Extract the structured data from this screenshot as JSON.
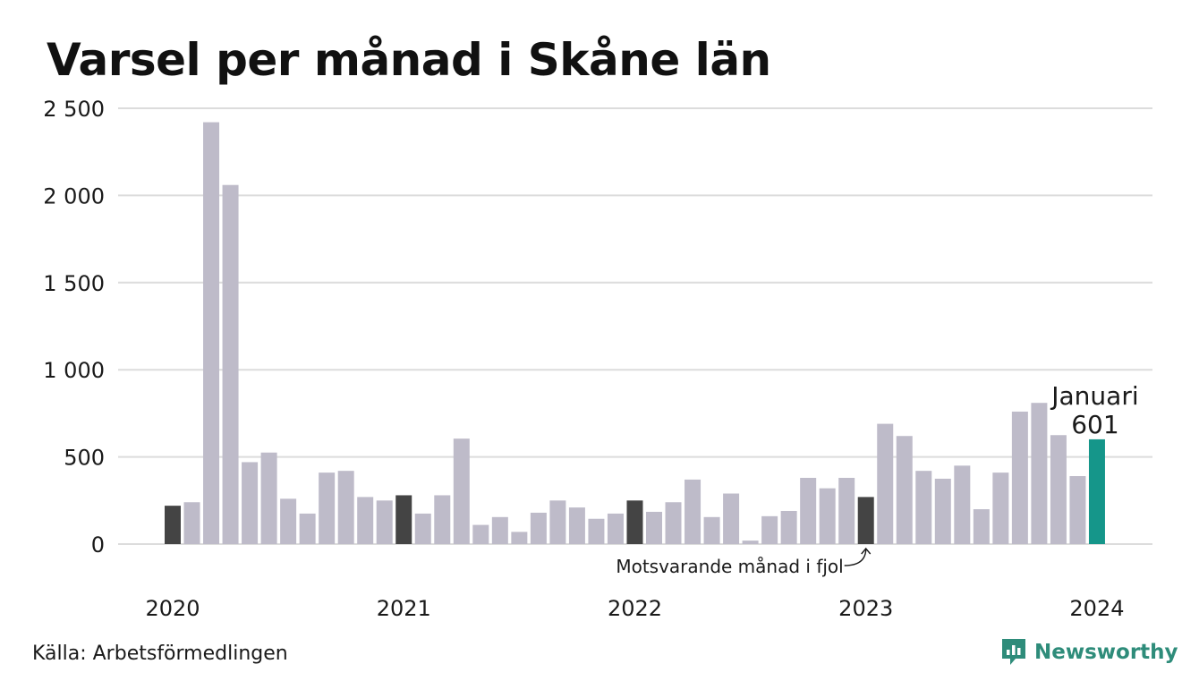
{
  "title": "Varsel per månad i Skåne län",
  "source": "Källa: Arbetsförmedlingen",
  "brand": {
    "name": "Newsworthy",
    "icon": "newsworthy-logo-icon",
    "color": "#2e8c7a"
  },
  "colors": {
    "bar_default": "#bebbc9",
    "bar_same_month": "#444444",
    "bar_current": "#15968a",
    "grid": "#dcdcdc"
  },
  "annotations": {
    "current_label": "Januari",
    "current_value": "601",
    "same_month_label": "Motsvarande månad i fjol"
  },
  "chart_data": {
    "type": "bar",
    "title": "Varsel per månad i Skåne län",
    "xlabel": "",
    "ylabel": "",
    "ylim": [
      0,
      2500
    ],
    "yticks": [
      0,
      500,
      1000,
      1500,
      2000,
      2500
    ],
    "ytick_labels": [
      "0",
      "500",
      "1 000",
      "1 500",
      "2 000",
      "2 500"
    ],
    "xtick_labels": [
      "2020",
      "2021",
      "2022",
      "2023",
      "2024"
    ],
    "grid": true,
    "series": [
      {
        "values": [
          220,
          240,
          2420,
          2060,
          470,
          525,
          260,
          175,
          410,
          420,
          270,
          250,
          280,
          175,
          280,
          605,
          110,
          155,
          70,
          180,
          250,
          210,
          145,
          175,
          250,
          185,
          240,
          370,
          155,
          290,
          20,
          160,
          190,
          380,
          320,
          380,
          270,
          690,
          620,
          420,
          375,
          450,
          200,
          410,
          760,
          810,
          625,
          390,
          601
        ],
        "highlight": [
          0,
          12,
          24,
          36
        ],
        "current": 48
      }
    ],
    "periods": [
      "2020-01",
      "2020-02",
      "2020-03",
      "2020-04",
      "2020-05",
      "2020-06",
      "2020-07",
      "2020-08",
      "2020-09",
      "2020-10",
      "2020-11",
      "2020-12",
      "2021-01",
      "2021-02",
      "2021-03",
      "2021-04",
      "2021-05",
      "2021-06",
      "2021-07",
      "2021-08",
      "2021-09",
      "2021-10",
      "2021-11",
      "2021-12",
      "2022-01",
      "2022-02",
      "2022-03",
      "2022-04",
      "2022-05",
      "2022-06",
      "2022-07",
      "2022-08",
      "2022-09",
      "2022-10",
      "2022-11",
      "2022-12",
      "2023-01",
      "2023-02",
      "2023-03",
      "2023-04",
      "2023-05",
      "2023-06",
      "2023-07",
      "2023-08",
      "2023-09",
      "2023-10",
      "2023-11",
      "2023-12",
      "2024-01"
    ]
  }
}
